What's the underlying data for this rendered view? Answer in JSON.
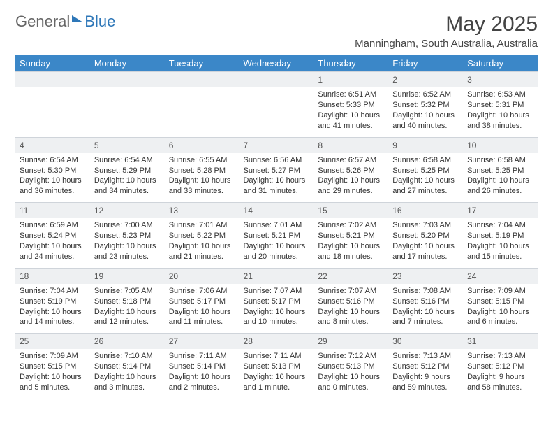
{
  "logo": {
    "text1": "General",
    "text2": "Blue"
  },
  "title": "May 2025",
  "location": "Manningham, South Australia, Australia",
  "colors": {
    "header_bg": "#3b87c8",
    "header_text": "#ffffff",
    "daynum_bg": "#eef0f2",
    "border": "#cfd4da",
    "text": "#333333",
    "logo_blue": "#2e77b8"
  },
  "layout": {
    "columns": 7,
    "weeks": 5,
    "cell_font_size_pt": 8,
    "header_font_size_pt": 10
  },
  "day_headers": [
    "Sunday",
    "Monday",
    "Tuesday",
    "Wednesday",
    "Thursday",
    "Friday",
    "Saturday"
  ],
  "weeks": [
    [
      null,
      null,
      null,
      null,
      {
        "n": "1",
        "sunrise": "6:51 AM",
        "sunset": "5:33 PM",
        "daylight": "10 hours and 41 minutes."
      },
      {
        "n": "2",
        "sunrise": "6:52 AM",
        "sunset": "5:32 PM",
        "daylight": "10 hours and 40 minutes."
      },
      {
        "n": "3",
        "sunrise": "6:53 AM",
        "sunset": "5:31 PM",
        "daylight": "10 hours and 38 minutes."
      }
    ],
    [
      {
        "n": "4",
        "sunrise": "6:54 AM",
        "sunset": "5:30 PM",
        "daylight": "10 hours and 36 minutes."
      },
      {
        "n": "5",
        "sunrise": "6:54 AM",
        "sunset": "5:29 PM",
        "daylight": "10 hours and 34 minutes."
      },
      {
        "n": "6",
        "sunrise": "6:55 AM",
        "sunset": "5:28 PM",
        "daylight": "10 hours and 33 minutes."
      },
      {
        "n": "7",
        "sunrise": "6:56 AM",
        "sunset": "5:27 PM",
        "daylight": "10 hours and 31 minutes."
      },
      {
        "n": "8",
        "sunrise": "6:57 AM",
        "sunset": "5:26 PM",
        "daylight": "10 hours and 29 minutes."
      },
      {
        "n": "9",
        "sunrise": "6:58 AM",
        "sunset": "5:25 PM",
        "daylight": "10 hours and 27 minutes."
      },
      {
        "n": "10",
        "sunrise": "6:58 AM",
        "sunset": "5:25 PM",
        "daylight": "10 hours and 26 minutes."
      }
    ],
    [
      {
        "n": "11",
        "sunrise": "6:59 AM",
        "sunset": "5:24 PM",
        "daylight": "10 hours and 24 minutes."
      },
      {
        "n": "12",
        "sunrise": "7:00 AM",
        "sunset": "5:23 PM",
        "daylight": "10 hours and 23 minutes."
      },
      {
        "n": "13",
        "sunrise": "7:01 AM",
        "sunset": "5:22 PM",
        "daylight": "10 hours and 21 minutes."
      },
      {
        "n": "14",
        "sunrise": "7:01 AM",
        "sunset": "5:21 PM",
        "daylight": "10 hours and 20 minutes."
      },
      {
        "n": "15",
        "sunrise": "7:02 AM",
        "sunset": "5:21 PM",
        "daylight": "10 hours and 18 minutes."
      },
      {
        "n": "16",
        "sunrise": "7:03 AM",
        "sunset": "5:20 PM",
        "daylight": "10 hours and 17 minutes."
      },
      {
        "n": "17",
        "sunrise": "7:04 AM",
        "sunset": "5:19 PM",
        "daylight": "10 hours and 15 minutes."
      }
    ],
    [
      {
        "n": "18",
        "sunrise": "7:04 AM",
        "sunset": "5:19 PM",
        "daylight": "10 hours and 14 minutes."
      },
      {
        "n": "19",
        "sunrise": "7:05 AM",
        "sunset": "5:18 PM",
        "daylight": "10 hours and 12 minutes."
      },
      {
        "n": "20",
        "sunrise": "7:06 AM",
        "sunset": "5:17 PM",
        "daylight": "10 hours and 11 minutes."
      },
      {
        "n": "21",
        "sunrise": "7:07 AM",
        "sunset": "5:17 PM",
        "daylight": "10 hours and 10 minutes."
      },
      {
        "n": "22",
        "sunrise": "7:07 AM",
        "sunset": "5:16 PM",
        "daylight": "10 hours and 8 minutes."
      },
      {
        "n": "23",
        "sunrise": "7:08 AM",
        "sunset": "5:16 PM",
        "daylight": "10 hours and 7 minutes."
      },
      {
        "n": "24",
        "sunrise": "7:09 AM",
        "sunset": "5:15 PM",
        "daylight": "10 hours and 6 minutes."
      }
    ],
    [
      {
        "n": "25",
        "sunrise": "7:09 AM",
        "sunset": "5:15 PM",
        "daylight": "10 hours and 5 minutes."
      },
      {
        "n": "26",
        "sunrise": "7:10 AM",
        "sunset": "5:14 PM",
        "daylight": "10 hours and 3 minutes."
      },
      {
        "n": "27",
        "sunrise": "7:11 AM",
        "sunset": "5:14 PM",
        "daylight": "10 hours and 2 minutes."
      },
      {
        "n": "28",
        "sunrise": "7:11 AM",
        "sunset": "5:13 PM",
        "daylight": "10 hours and 1 minute."
      },
      {
        "n": "29",
        "sunrise": "7:12 AM",
        "sunset": "5:13 PM",
        "daylight": "10 hours and 0 minutes."
      },
      {
        "n": "30",
        "sunrise": "7:13 AM",
        "sunset": "5:12 PM",
        "daylight": "9 hours and 59 minutes."
      },
      {
        "n": "31",
        "sunrise": "7:13 AM",
        "sunset": "5:12 PM",
        "daylight": "9 hours and 58 minutes."
      }
    ]
  ],
  "labels": {
    "sunrise_prefix": "Sunrise: ",
    "sunset_prefix": "Sunset: ",
    "daylight_prefix": "Daylight: "
  }
}
